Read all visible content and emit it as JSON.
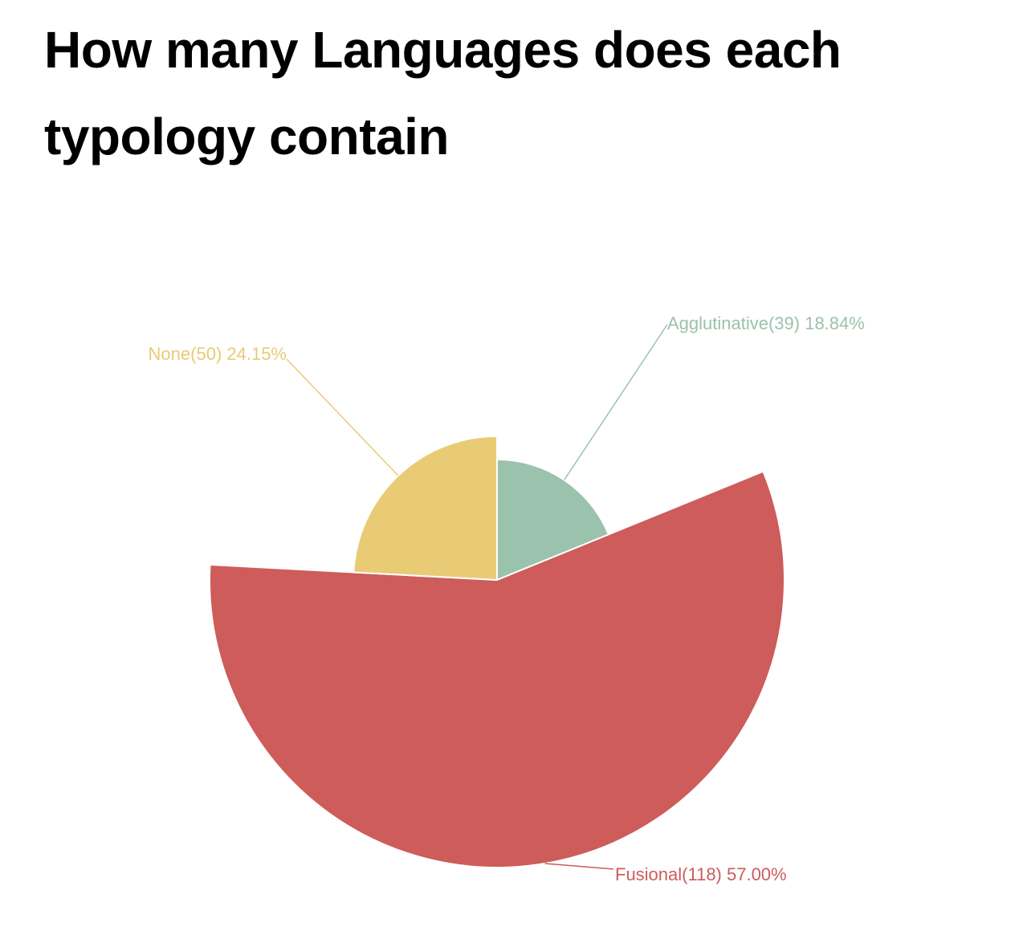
{
  "chart_data": {
    "type": "pie",
    "subtype": "nightingale-rose",
    "title": "How many Languages does each typology contain",
    "slices": [
      {
        "name": "Agglutinative",
        "value": 39,
        "percent": "18.84%",
        "color": "#9bc2ac"
      },
      {
        "name": "Fusional",
        "value": 118,
        "percent": "57.00%",
        "color": "#cd5c5a"
      },
      {
        "name": "None",
        "value": 50,
        "percent": "24.15%",
        "color": "#e9cb76"
      }
    ],
    "legend": "none"
  }
}
